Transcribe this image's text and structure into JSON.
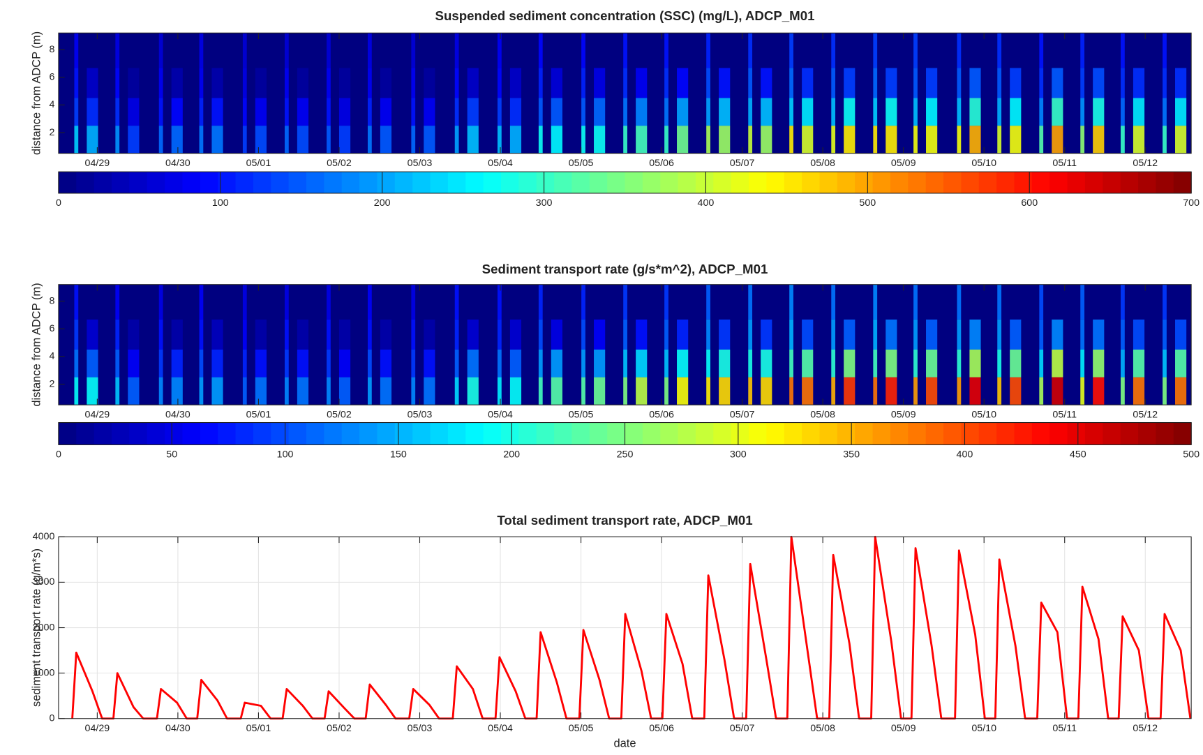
{
  "chart_data": [
    {
      "type": "heatmap",
      "title": "Suspended sediment concentration (SSC) (mg/L), ADCP_M01",
      "ylabel": "distance from ADCP (m)",
      "colormap": "jet",
      "x": [
        -0.26,
        -0.06,
        0.25,
        0.45,
        0.79,
        0.99,
        1.29,
        1.49,
        1.83,
        2.03,
        2.35,
        2.55,
        2.87,
        3.07,
        3.38,
        3.58,
        3.92,
        4.12,
        4.46,
        4.66,
        4.99,
        5.19,
        5.5,
        5.7,
        6.03,
        6.23,
        6.55,
        6.75,
        7.06,
        7.26,
        7.58,
        7.78,
        8.1,
        8.3,
        8.61,
        8.81,
        9.13,
        9.33,
        9.65,
        9.85,
        10.15,
        10.35,
        10.69,
        10.89,
        11.19,
        11.39,
        11.71,
        11.91,
        12.22,
        12.42,
        12.72,
        12.92,
        13.24,
        13.44
      ],
      "y": [
        1.5,
        3.5,
        5.5,
        7.85
      ],
      "values": [
        [
          230,
          210,
          190,
          130,
          160,
          160,
          170,
          170,
          130,
          140,
          160,
          140,
          150,
          130,
          170,
          150,
          160,
          150,
          200,
          220,
          220,
          210,
          270,
          260,
          270,
          270,
          300,
          310,
          300,
          340,
          380,
          370,
          400,
          370,
          450,
          410,
          420,
          450,
          450,
          450,
          430,
          430,
          430,
          490,
          410,
          430,
          320,
          500,
          360,
          470,
          300,
          410,
          300,
          410
        ],
        [
          130,
          120,
          120,
          70,
          100,
          90,
          110,
          100,
          90,
          80,
          100,
          80,
          100,
          70,
          110,
          80,
          100,
          80,
          120,
          130,
          130,
          120,
          150,
          150,
          150,
          160,
          170,
          180,
          170,
          200,
          200,
          220,
          210,
          220,
          230,
          250,
          220,
          270,
          230,
          270,
          220,
          260,
          220,
          290,
          210,
          260,
          180,
          300,
          190,
          280,
          160,
          250,
          170,
          250
        ],
        [
          100,
          50,
          90,
          20,
          80,
          30,
          80,
          30,
          70,
          20,
          80,
          20,
          80,
          20,
          80,
          20,
          80,
          20,
          90,
          50,
          90,
          50,
          110,
          60,
          110,
          70,
          120,
          80,
          120,
          90,
          140,
          100,
          150,
          100,
          160,
          120,
          150,
          130,
          160,
          130,
          150,
          130,
          150,
          150,
          150,
          130,
          120,
          150,
          130,
          140,
          120,
          120,
          120,
          120
        ],
        [
          80,
          0,
          70,
          0,
          60,
          0,
          70,
          0,
          60,
          0,
          60,
          0,
          60,
          0,
          70,
          0,
          60,
          0,
          70,
          0,
          80,
          0,
          90,
          0,
          90,
          0,
          100,
          0,
          100,
          0,
          110,
          0,
          120,
          0,
          130,
          0,
          120,
          0,
          130,
          0,
          130,
          0,
          120,
          0,
          120,
          0,
          100,
          0,
          110,
          0,
          100,
          0,
          100,
          0
        ]
      ],
      "xlim": [
        -0.48,
        13.57
      ],
      "ylim": [
        0.5,
        9.2
      ],
      "xticks": [
        {
          "value": 0,
          "label": "04/29"
        },
        {
          "value": 1,
          "label": "04/30"
        },
        {
          "value": 2,
          "label": "05/01"
        },
        {
          "value": 3,
          "label": "05/02"
        },
        {
          "value": 4,
          "label": "05/03"
        },
        {
          "value": 5,
          "label": "05/04"
        },
        {
          "value": 6,
          "label": "05/05"
        },
        {
          "value": 7,
          "label": "05/06"
        },
        {
          "value": 8,
          "label": "05/07"
        },
        {
          "value": 9,
          "label": "05/08"
        },
        {
          "value": 10,
          "label": "05/09"
        },
        {
          "value": 11,
          "label": "05/10"
        },
        {
          "value": 12,
          "label": "05/11"
        },
        {
          "value": 13,
          "label": "05/12"
        }
      ],
      "yticks": [
        2,
        4,
        6,
        8
      ],
      "clim": [
        0,
        700
      ],
      "cticks": [
        0,
        100,
        200,
        300,
        400,
        500,
        600,
        700
      ]
    },
    {
      "type": "heatmap",
      "title": "Sediment transport rate (g/s*m^2), ADCP_M01",
      "ylabel": "distance from ADCP (m)",
      "colormap": "jet",
      "x": [
        -0.26,
        -0.06,
        0.25,
        0.45,
        0.79,
        0.99,
        1.29,
        1.49,
        1.83,
        2.03,
        2.35,
        2.55,
        2.87,
        3.07,
        3.38,
        3.58,
        3.92,
        4.12,
        4.46,
        4.66,
        4.99,
        5.19,
        5.5,
        5.7,
        6.03,
        6.23,
        6.55,
        6.75,
        7.06,
        7.26,
        7.58,
        7.78,
        8.1,
        8.3,
        8.61,
        8.81,
        9.13,
        9.33,
        9.65,
        9.85,
        10.15,
        10.35,
        10.69,
        10.89,
        11.19,
        11.39,
        11.71,
        11.91,
        12.22,
        12.42,
        12.72,
        12.92,
        13.24,
        13.44
      ],
      "y": [
        1.5,
        3.5,
        5.5,
        7.85
      ],
      "values": [
        [
          190,
          190,
          160,
          110,
          130,
          130,
          140,
          140,
          110,
          120,
          130,
          120,
          130,
          110,
          140,
          120,
          130,
          120,
          170,
          200,
          180,
          190,
          220,
          230,
          230,
          240,
          250,
          280,
          250,
          310,
          320,
          330,
          340,
          330,
          380,
          380,
          350,
          410,
          380,
          420,
          360,
          400,
          360,
          450,
          340,
          400,
          270,
          460,
          300,
          430,
          250,
          380,
          250,
          380
        ],
        [
          120,
          110,
          110,
          60,
          90,
          80,
          100,
          80,
          80,
          70,
          90,
          70,
          90,
          60,
          100,
          70,
          90,
          70,
          110,
          120,
          120,
          110,
          140,
          140,
          140,
          140,
          160,
          170,
          160,
          190,
          190,
          200,
          200,
          200,
          220,
          230,
          210,
          250,
          220,
          250,
          210,
          240,
          210,
          270,
          200,
          240,
          170,
          280,
          180,
          260,
          150,
          230,
          160,
          230
        ],
        [
          90,
          40,
          80,
          20,
          70,
          20,
          70,
          30,
          60,
          20,
          70,
          20,
          70,
          20,
          70,
          20,
          70,
          20,
          80,
          40,
          80,
          40,
          100,
          50,
          100,
          60,
          110,
          70,
          110,
          80,
          130,
          90,
          140,
          90,
          150,
          100,
          140,
          110,
          150,
          120,
          140,
          110,
          140,
          130,
          140,
          110,
          110,
          130,
          120,
          120,
          110,
          100,
          110,
          100
        ],
        [
          70,
          0,
          60,
          0,
          50,
          0,
          60,
          0,
          50,
          0,
          50,
          0,
          50,
          0,
          60,
          0,
          50,
          0,
          70,
          0,
          70,
          0,
          80,
          0,
          80,
          0,
          90,
          0,
          90,
          0,
          110,
          0,
          120,
          0,
          130,
          0,
          120,
          0,
          130,
          0,
          120,
          0,
          120,
          0,
          120,
          0,
          100,
          0,
          110,
          0,
          90,
          0,
          90,
          0
        ]
      ],
      "xlim": [
        -0.48,
        13.57
      ],
      "ylim": [
        0.5,
        9.2
      ],
      "xticks": [
        {
          "value": 0,
          "label": "04/29"
        },
        {
          "value": 1,
          "label": "04/30"
        },
        {
          "value": 2,
          "label": "05/01"
        },
        {
          "value": 3,
          "label": "05/02"
        },
        {
          "value": 4,
          "label": "05/03"
        },
        {
          "value": 5,
          "label": "05/04"
        },
        {
          "value": 6,
          "label": "05/05"
        },
        {
          "value": 7,
          "label": "05/06"
        },
        {
          "value": 8,
          "label": "05/07"
        },
        {
          "value": 9,
          "label": "05/08"
        },
        {
          "value": 10,
          "label": "05/09"
        },
        {
          "value": 11,
          "label": "05/10"
        },
        {
          "value": 12,
          "label": "05/11"
        },
        {
          "value": 13,
          "label": "05/12"
        }
      ],
      "yticks": [
        2,
        4,
        6,
        8
      ],
      "clim": [
        0,
        500
      ],
      "cticks": [
        0,
        50,
        100,
        150,
        200,
        250,
        300,
        350,
        400,
        450,
        500
      ]
    },
    {
      "type": "line",
      "title": "Total sediment transport rate, ADCP_M01",
      "xlabel": "date",
      "ylabel": "sediment transport rate (g/m*s)",
      "grid": true,
      "x": [
        -0.31,
        -0.26,
        -0.06,
        0.06,
        0.2,
        0.25,
        0.45,
        0.57,
        0.74,
        0.79,
        0.99,
        1.11,
        1.24,
        1.29,
        1.49,
        1.61,
        1.78,
        1.83,
        2.03,
        2.15,
        2.3,
        2.35,
        2.55,
        2.67,
        2.82,
        2.87,
        3.07,
        3.19,
        3.33,
        3.38,
        3.58,
        3.7,
        3.87,
        3.92,
        4.12,
        4.24,
        4.41,
        4.46,
        4.66,
        4.78,
        4.94,
        4.99,
        5.19,
        5.31,
        5.45,
        5.5,
        5.7,
        5.82,
        5.98,
        6.03,
        6.23,
        6.35,
        6.5,
        6.55,
        6.75,
        6.87,
        7.01,
        7.06,
        7.26,
        7.38,
        7.53,
        7.58,
        7.78,
        7.9,
        8.05,
        8.1,
        8.3,
        8.42,
        8.56,
        8.61,
        8.81,
        8.93,
        9.08,
        9.13,
        9.33,
        9.45,
        9.6,
        9.65,
        9.85,
        9.97,
        10.1,
        10.15,
        10.35,
        10.47,
        10.64,
        10.69,
        10.89,
        11.01,
        11.14,
        11.19,
        11.39,
        11.51,
        11.66,
        11.71,
        11.91,
        12.03,
        12.17,
        12.22,
        12.42,
        12.54,
        12.67,
        12.72,
        12.92,
        13.04,
        13.19,
        13.24,
        13.44,
        13.56
      ],
      "series": [
        {
          "color": "#ff0000",
          "values": [
            0,
            1450,
            600,
            0,
            0,
            1000,
            250,
            0,
            0,
            650,
            350,
            0,
            0,
            850,
            400,
            0,
            0,
            350,
            280,
            0,
            0,
            650,
            280,
            0,
            0,
            600,
            220,
            0,
            0,
            750,
            300,
            0,
            0,
            650,
            300,
            0,
            0,
            1150,
            650,
            0,
            0,
            1350,
            600,
            0,
            0,
            1900,
            800,
            0,
            0,
            1950,
            850,
            0,
            0,
            2300,
            1050,
            0,
            0,
            2300,
            1200,
            0,
            0,
            3150,
            1300,
            0,
            0,
            3400,
            1300,
            0,
            0,
            4000,
            1500,
            0,
            0,
            3600,
            1650,
            0,
            0,
            4000,
            1700,
            0,
            0,
            3750,
            1600,
            0,
            0,
            3700,
            1850,
            0,
            0,
            3500,
            1600,
            0,
            0,
            2550,
            1900,
            0,
            0,
            2900,
            1750,
            0,
            0,
            2250,
            1500,
            0,
            0,
            2300,
            1500,
            0
          ]
        }
      ],
      "xlim": [
        -0.48,
        13.57
      ],
      "ylim": [
        0,
        4000
      ],
      "xticks": [
        {
          "value": 0,
          "label": "04/29"
        },
        {
          "value": 1,
          "label": "04/30"
        },
        {
          "value": 2,
          "label": "05/01"
        },
        {
          "value": 3,
          "label": "05/02"
        },
        {
          "value": 4,
          "label": "05/03"
        },
        {
          "value": 5,
          "label": "05/04"
        },
        {
          "value": 6,
          "label": "05/05"
        },
        {
          "value": 7,
          "label": "05/06"
        },
        {
          "value": 8,
          "label": "05/07"
        },
        {
          "value": 9,
          "label": "05/08"
        },
        {
          "value": 10,
          "label": "05/09"
        },
        {
          "value": 11,
          "label": "05/10"
        },
        {
          "value": 12,
          "label": "05/11"
        },
        {
          "value": 13,
          "label": "05/12"
        }
      ],
      "yticks": [
        0,
        1000,
        2000,
        3000,
        4000
      ]
    }
  ]
}
